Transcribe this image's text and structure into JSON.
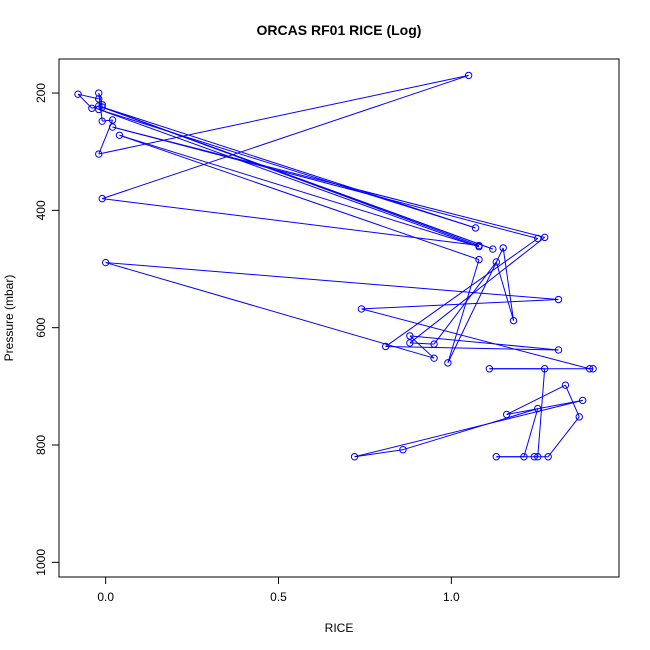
{
  "chart_data": {
    "type": "line",
    "title": "ORCAS RF01 RICE (Log)",
    "xlabel": "RICE",
    "ylabel": "Pressure (mbar)",
    "xlim": [
      -0.135,
      1.485
    ],
    "ylim": [
      1025,
      142
    ],
    "y_reversed": true,
    "x_ticks": [
      {
        "value": 0.0,
        "label": "0.0"
      },
      {
        "value": 0.5,
        "label": "0.5"
      },
      {
        "value": 1.0,
        "label": "1.0"
      }
    ],
    "y_ticks": [
      {
        "value": 200,
        "label": "200"
      },
      {
        "value": 400,
        "label": "400"
      },
      {
        "value": 600,
        "label": "600"
      },
      {
        "value": 800,
        "label": "800"
      },
      {
        "value": 1000,
        "label": "1000"
      }
    ],
    "grid": false,
    "legend": "none",
    "series": [
      {
        "color": "#0000ff",
        "marker": "open-circle",
        "points": [
          {
            "x": 1.24,
            "y": 820
          },
          {
            "x": 1.28,
            "y": 820
          },
          {
            "x": 1.37,
            "y": 752
          },
          {
            "x": 1.33,
            "y": 698
          },
          {
            "x": 1.16,
            "y": 748
          },
          {
            "x": 1.38,
            "y": 724
          },
          {
            "x": 0.72,
            "y": 820
          },
          {
            "x": 0.86,
            "y": 808
          },
          {
            "x": 1.25,
            "y": 738
          },
          {
            "x": 1.21,
            "y": 820
          },
          {
            "x": 1.13,
            "y": 820
          },
          {
            "x": 1.25,
            "y": 820
          },
          {
            "x": 1.27,
            "y": 670
          },
          {
            "x": 1.11,
            "y": 670
          },
          {
            "x": 1.41,
            "y": 670
          },
          {
            "x": 1.4,
            "y": 670
          },
          {
            "x": 0.74,
            "y": 568
          },
          {
            "x": 1.31,
            "y": 552
          },
          {
            "x": 0.0,
            "y": 489
          },
          {
            "x": 0.95,
            "y": 652
          },
          {
            "x": 0.88,
            "y": 614
          },
          {
            "x": 1.31,
            "y": 638
          },
          {
            "x": 0.81,
            "y": 632
          },
          {
            "x": 1.25,
            "y": 448
          },
          {
            "x": 0.02,
            "y": 258
          },
          {
            "x": 1.27,
            "y": 446
          },
          {
            "x": 0.88,
            "y": 626
          },
          {
            "x": 0.95,
            "y": 628
          },
          {
            "x": 1.13,
            "y": 488
          },
          {
            "x": 1.18,
            "y": 588
          },
          {
            "x": 1.15,
            "y": 464
          },
          {
            "x": 0.99,
            "y": 660
          },
          {
            "x": 1.08,
            "y": 484
          },
          {
            "x": 0.04,
            "y": 272
          },
          {
            "x": 1.08,
            "y": 462
          },
          {
            "x": -0.02,
            "y": 228
          },
          {
            "x": 1.07,
            "y": 430
          },
          {
            "x": -0.02,
            "y": 222
          },
          {
            "x": 1.12,
            "y": 466
          },
          {
            "x": -0.01,
            "y": 224
          },
          {
            "x": 1.08,
            "y": 460
          },
          {
            "x": -0.01,
            "y": 380
          },
          {
            "x": 1.05,
            "y": 170
          },
          {
            "x": -0.02,
            "y": 304
          },
          {
            "x": 0.02,
            "y": 246
          },
          {
            "x": -0.01,
            "y": 248
          },
          {
            "x": -0.02,
            "y": 200
          },
          {
            "x": -0.01,
            "y": 220
          },
          {
            "x": -0.04,
            "y": 226
          },
          {
            "x": -0.08,
            "y": 202
          },
          {
            "x": -0.02,
            "y": 210
          }
        ]
      }
    ]
  }
}
